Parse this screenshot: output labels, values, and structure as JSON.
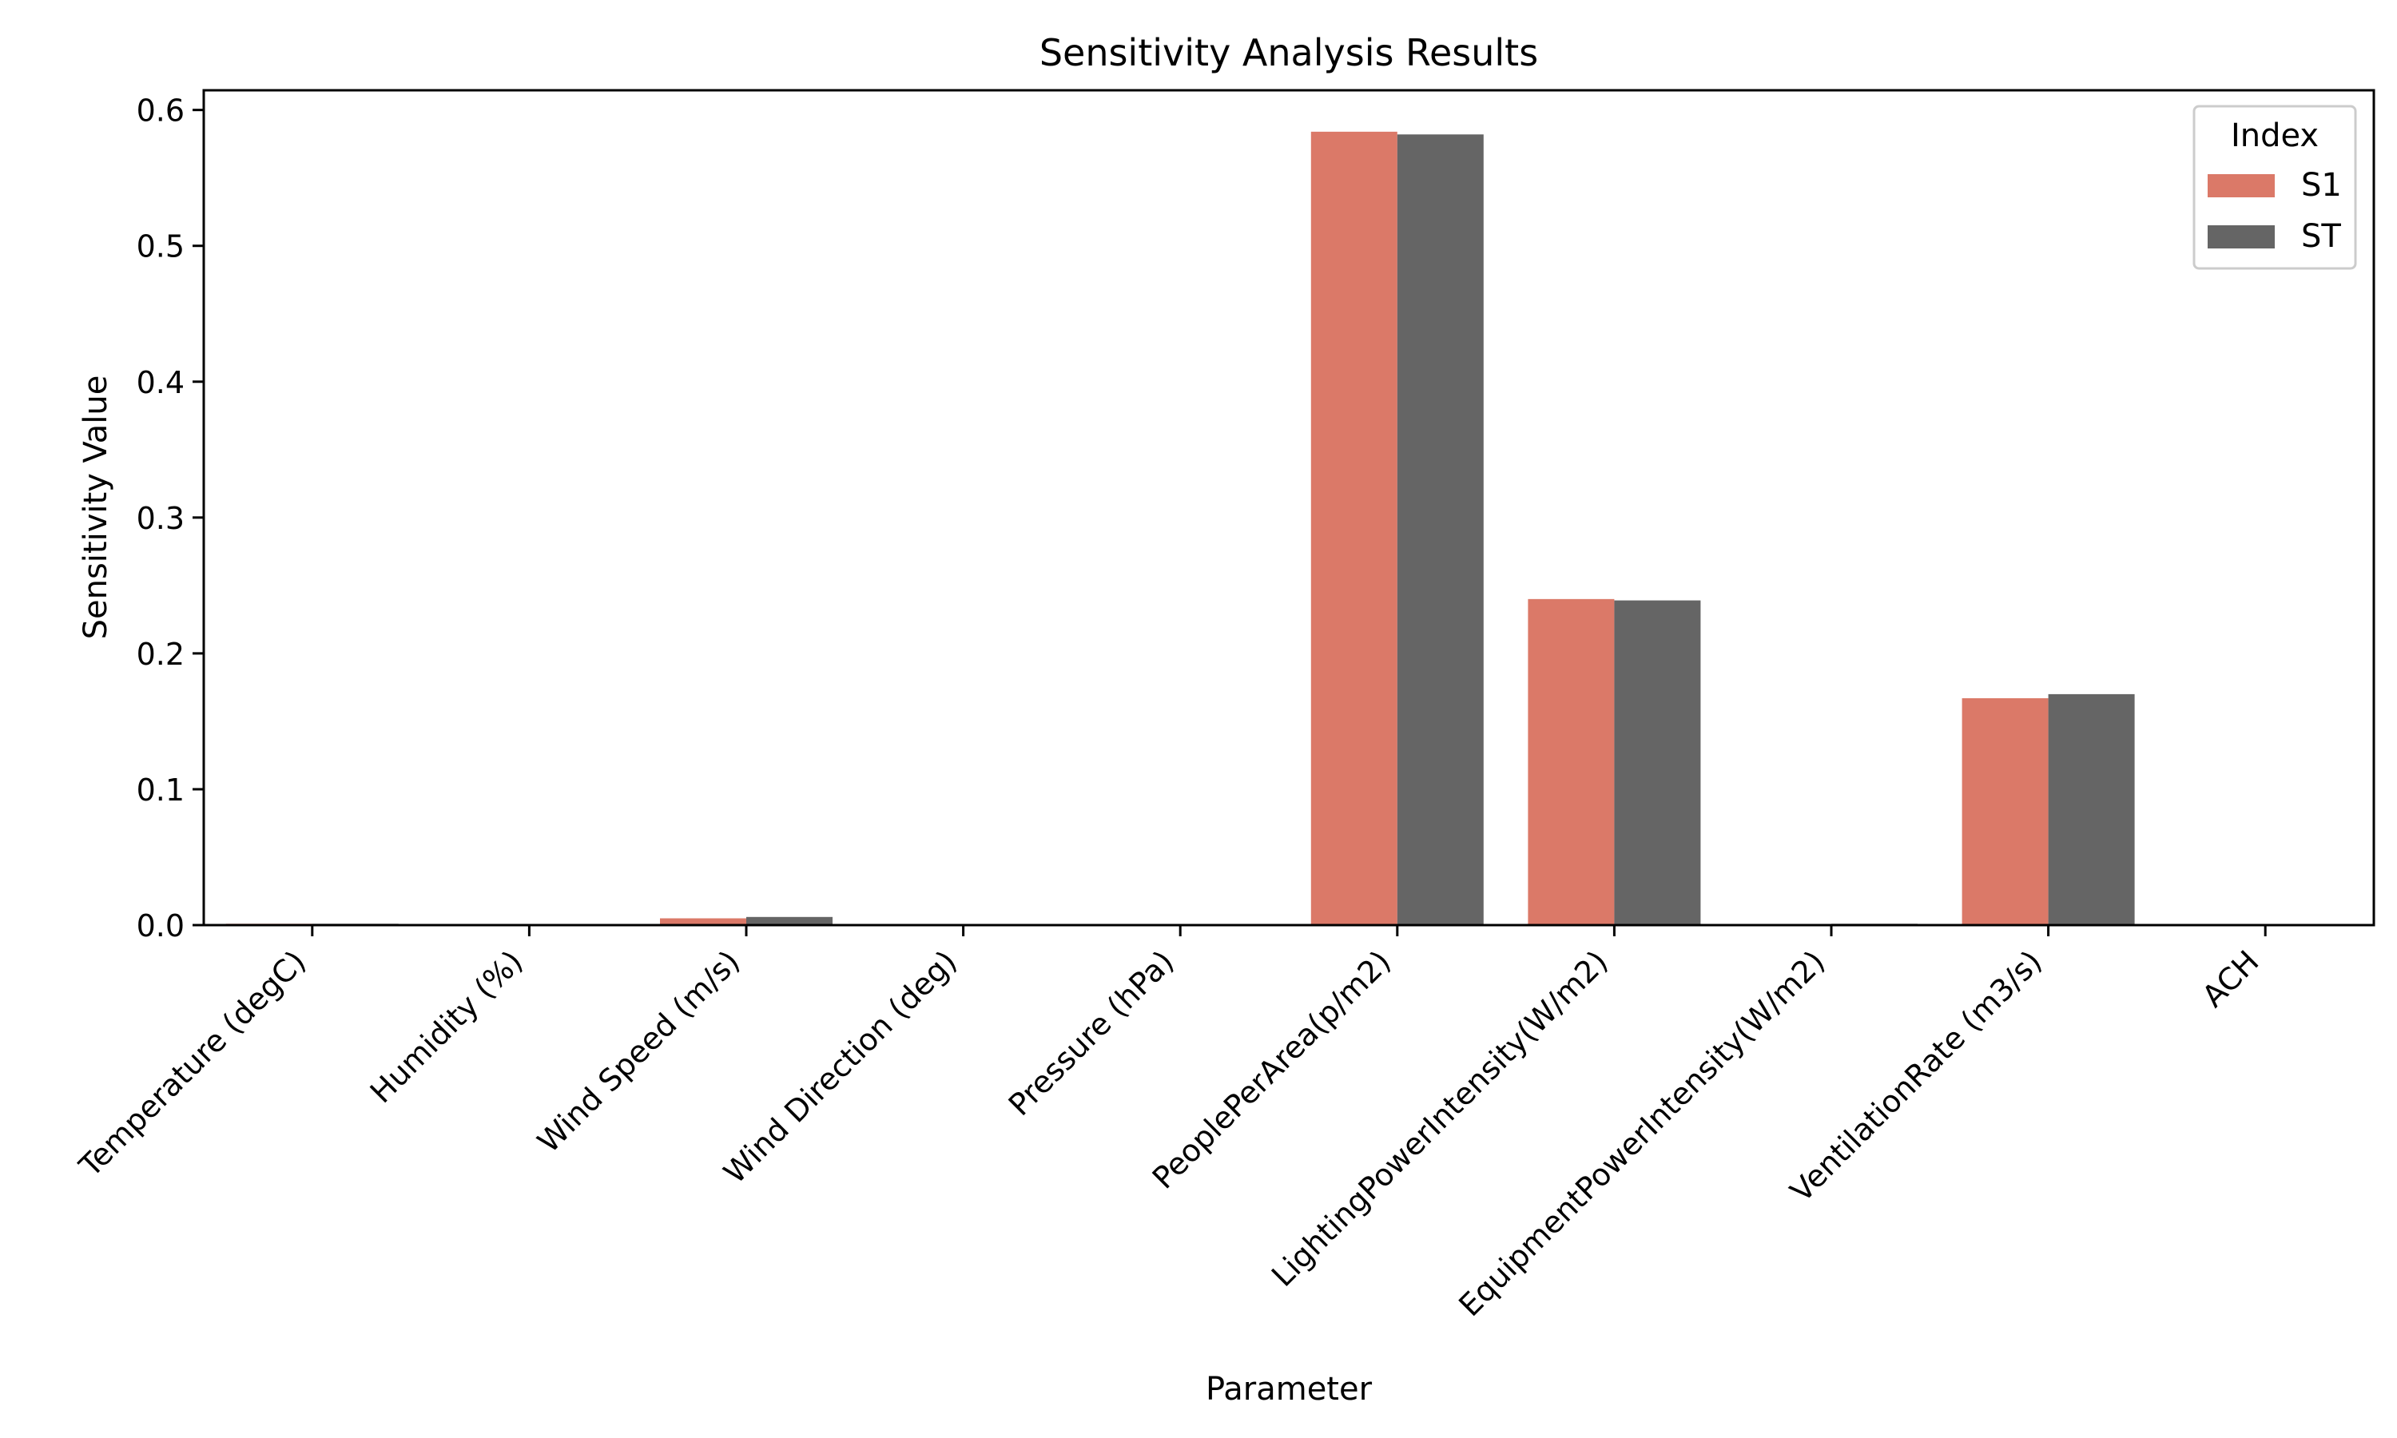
{
  "chart_data": {
    "type": "bar",
    "title": "Sensitivity Analysis Results",
    "xlabel": "Parameter",
    "ylabel": "Sensitivity Value",
    "ylim": [
      0,
      0.6
    ],
    "yticks": [
      "0.0",
      "0.1",
      "0.2",
      "0.3",
      "0.4",
      "0.5",
      "0.6"
    ],
    "categories": [
      "Temperature (degC)",
      "Humidity (%)",
      "Wind Speed (m/s)",
      "Wind Direction (deg)",
      "Pressure (hPa)",
      "PeoplePerArea(p/m2)",
      "LightingPowerIntensity(W/m2)",
      "EquipmentPowerIntensity(W/m2)",
      "VentilationRate (m3/s)",
      "ACH"
    ],
    "series": [
      {
        "name": "S1",
        "color": "#db7968",
        "values": [
          0.001,
          0.0,
          0.005,
          0.0,
          0.0,
          0.584,
          0.24,
          0.0,
          0.167,
          0.0
        ]
      },
      {
        "name": "ST",
        "color": "#656565",
        "values": [
          0.001,
          0.0,
          0.006,
          0.0,
          0.0,
          0.582,
          0.239,
          0.001,
          0.17,
          0.0
        ]
      }
    ],
    "legend": {
      "title": "Index",
      "placement": "top-right"
    },
    "grid": false
  }
}
